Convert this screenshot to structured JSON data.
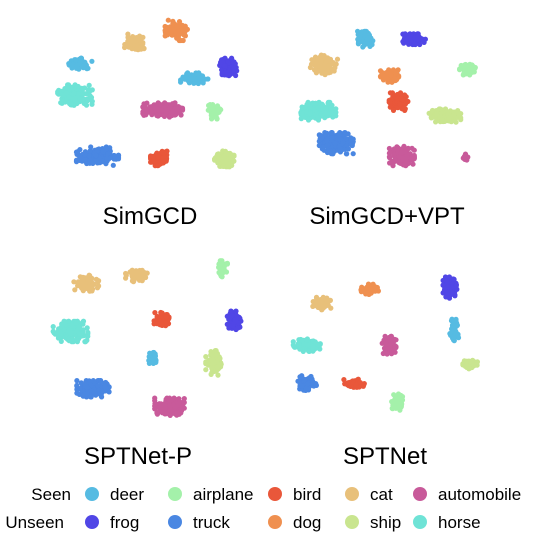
{
  "chart_data": [
    {
      "type": "scatter",
      "title": "SimGCD",
      "clusters": [
        {
          "class": "deer",
          "center": [
            0.22,
            0.29
          ],
          "spread": [
            0.1,
            0.07
          ],
          "n": 55
        },
        {
          "class": "deer",
          "center": [
            0.73,
            0.37
          ],
          "spread": [
            0.11,
            0.07
          ],
          "n": 80
        },
        {
          "class": "cat",
          "center": [
            0.47,
            0.18
          ],
          "spread": [
            0.09,
            0.09
          ],
          "n": 70
        },
        {
          "class": "dog",
          "center": [
            0.65,
            0.11
          ],
          "spread": [
            0.09,
            0.1
          ],
          "n": 90
        },
        {
          "class": "frog",
          "center": [
            0.88,
            0.31
          ],
          "spread": [
            0.07,
            0.09
          ],
          "n": 90
        },
        {
          "class": "horse",
          "center": [
            0.2,
            0.46
          ],
          "spread": [
            0.14,
            0.1
          ],
          "n": 170
        },
        {
          "class": "automobile",
          "center": [
            0.59,
            0.54
          ],
          "spread": [
            0.16,
            0.07
          ],
          "n": 190
        },
        {
          "class": "airplane",
          "center": [
            0.82,
            0.55
          ],
          "spread": [
            0.05,
            0.07
          ],
          "n": 45
        },
        {
          "class": "truck",
          "center": [
            0.3,
            0.79
          ],
          "spread": [
            0.17,
            0.09
          ],
          "n": 180
        },
        {
          "class": "bird",
          "center": [
            0.58,
            0.8
          ],
          "spread": [
            0.08,
            0.08
          ],
          "n": 90
        },
        {
          "class": "ship",
          "center": [
            0.87,
            0.81
          ],
          "spread": [
            0.09,
            0.09
          ],
          "n": 110
        }
      ]
    },
    {
      "type": "scatter",
      "title": "SimGCD+VPT",
      "clusters": [
        {
          "class": "deer",
          "center": [
            0.39,
            0.12
          ],
          "spread": [
            0.07,
            0.09
          ],
          "n": 80
        },
        {
          "class": "frog",
          "center": [
            0.63,
            0.12
          ],
          "spread": [
            0.1,
            0.06
          ],
          "n": 100
        },
        {
          "class": "cat",
          "center": [
            0.19,
            0.28
          ],
          "spread": [
            0.12,
            0.11
          ],
          "n": 110
        },
        {
          "class": "dog",
          "center": [
            0.51,
            0.35
          ],
          "spread": [
            0.08,
            0.07
          ],
          "n": 90
        },
        {
          "class": "bird",
          "center": [
            0.55,
            0.51
          ],
          "spread": [
            0.09,
            0.1
          ],
          "n": 110
        },
        {
          "class": "airplane",
          "center": [
            0.89,
            0.31
          ],
          "spread": [
            0.07,
            0.06
          ],
          "n": 70
        },
        {
          "class": "horse",
          "center": [
            0.16,
            0.57
          ],
          "spread": [
            0.16,
            0.1
          ],
          "n": 220
        },
        {
          "class": "ship",
          "center": [
            0.78,
            0.6
          ],
          "spread": [
            0.14,
            0.08
          ],
          "n": 160
        },
        {
          "class": "truck",
          "center": [
            0.25,
            0.77
          ],
          "spread": [
            0.15,
            0.12
          ],
          "n": 230
        },
        {
          "class": "automobile",
          "center": [
            0.57,
            0.85
          ],
          "spread": [
            0.11,
            0.11
          ],
          "n": 170
        },
        {
          "class": "automobile",
          "center": [
            0.88,
            0.86
          ],
          "spread": [
            0.03,
            0.04
          ],
          "n": 14
        }
      ]
    },
    {
      "type": "scatter",
      "title": "SPTNet-P",
      "clusters": [
        {
          "class": "cat",
          "center": [
            0.25,
            0.18
          ],
          "spread": [
            0.1,
            0.08
          ],
          "n": 70
        },
        {
          "class": "cat",
          "center": [
            0.48,
            0.14
          ],
          "spread": [
            0.1,
            0.06
          ],
          "n": 60
        },
        {
          "class": "airplane",
          "center": [
            0.85,
            0.09
          ],
          "spread": [
            0.05,
            0.1
          ],
          "n": 45
        },
        {
          "class": "horse",
          "center": [
            0.18,
            0.44
          ],
          "spread": [
            0.14,
            0.1
          ],
          "n": 200
        },
        {
          "class": "bird",
          "center": [
            0.59,
            0.37
          ],
          "spread": [
            0.07,
            0.07
          ],
          "n": 70
        },
        {
          "class": "frog",
          "center": [
            0.91,
            0.38
          ],
          "spread": [
            0.06,
            0.09
          ],
          "n": 90
        },
        {
          "class": "deer",
          "center": [
            0.55,
            0.58
          ],
          "spread": [
            0.04,
            0.06
          ],
          "n": 40
        },
        {
          "class": "ship",
          "center": [
            0.82,
            0.61
          ],
          "spread": [
            0.07,
            0.12
          ],
          "n": 80
        },
        {
          "class": "truck",
          "center": [
            0.28,
            0.75
          ],
          "spread": [
            0.13,
            0.08
          ],
          "n": 160
        },
        {
          "class": "automobile",
          "center": [
            0.62,
            0.85
          ],
          "spread": [
            0.12,
            0.09
          ],
          "n": 170
        }
      ]
    },
    {
      "type": "scatter",
      "title": "SPTNet",
      "clusters": [
        {
          "class": "cat",
          "center": [
            0.19,
            0.26
          ],
          "spread": [
            0.08,
            0.07
          ],
          "n": 55
        },
        {
          "class": "dog",
          "center": [
            0.42,
            0.17
          ],
          "spread": [
            0.08,
            0.07
          ],
          "n": 60
        },
        {
          "class": "frog",
          "center": [
            0.8,
            0.16
          ],
          "spread": [
            0.06,
            0.12
          ],
          "n": 100
        },
        {
          "class": "deer",
          "center": [
            0.82,
            0.42
          ],
          "spread": [
            0.04,
            0.13
          ],
          "n": 60
        },
        {
          "class": "horse",
          "center": [
            0.12,
            0.52
          ],
          "spread": [
            0.12,
            0.07
          ],
          "n": 110
        },
        {
          "class": "automobile",
          "center": [
            0.51,
            0.52
          ],
          "spread": [
            0.06,
            0.1
          ],
          "n": 90
        },
        {
          "class": "ship",
          "center": [
            0.9,
            0.64
          ],
          "spread": [
            0.07,
            0.05
          ],
          "n": 50
        },
        {
          "class": "truck",
          "center": [
            0.12,
            0.76
          ],
          "spread": [
            0.08,
            0.09
          ],
          "n": 80
        },
        {
          "class": "bird",
          "center": [
            0.35,
            0.76
          ],
          "spread": [
            0.1,
            0.05
          ],
          "n": 60
        },
        {
          "class": "airplane",
          "center": [
            0.55,
            0.88
          ],
          "spread": [
            0.05,
            0.1
          ],
          "n": 60
        }
      ]
    }
  ],
  "legend": {
    "seen_label": "Seen",
    "unseen_label": "Unseen",
    "seen": [
      {
        "class": "deer",
        "label": "deer",
        "color": "#56bbe2"
      },
      {
        "class": "airplane",
        "label": "airplane",
        "color": "#a4f1aa"
      },
      {
        "class": "bird",
        "label": "bird",
        "color": "#e9573a"
      },
      {
        "class": "cat",
        "label": "cat",
        "color": "#e8c07a"
      },
      {
        "class": "automobile",
        "label": "automobile",
        "color": "#c85a9a"
      }
    ],
    "unseen": [
      {
        "class": "frog",
        "label": "frog",
        "color": "#5046e6"
      },
      {
        "class": "truck",
        "label": "truck",
        "color": "#4a87e2"
      },
      {
        "class": "dog",
        "label": "dog",
        "color": "#ef9050"
      },
      {
        "class": "ship",
        "label": "ship",
        "color": "#c9e58f"
      },
      {
        "class": "horse",
        "label": "horse",
        "color": "#6fe3d6"
      }
    ]
  }
}
